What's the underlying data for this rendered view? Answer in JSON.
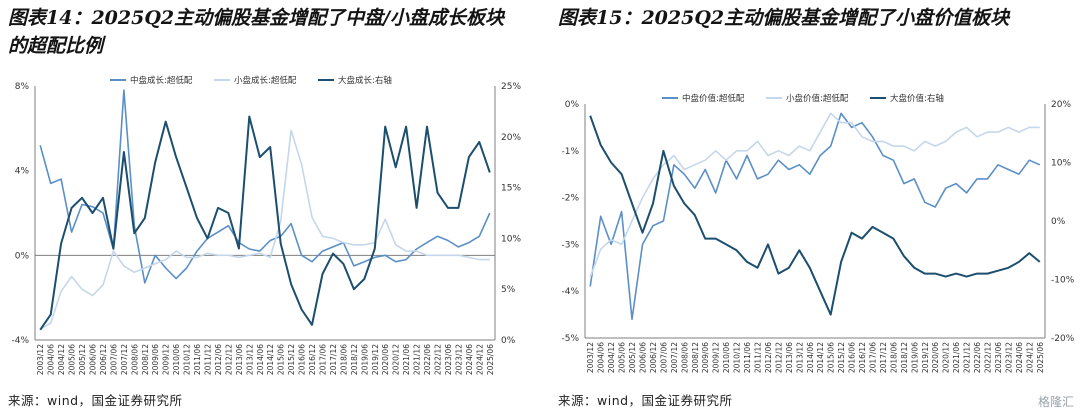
{
  "source_label": "来源：wind，国金证券研究所",
  "watermark": "格隆汇",
  "colors": {
    "mid": "#5b8fc7",
    "small": "#c5d7ea",
    "large": "#1c4e6e",
    "axis": "#7f7f7f",
    "text": "#333333"
  },
  "chart_data": [
    {
      "type": "line",
      "title": "图表14：2025Q2主动偏股基金增配了中盘/小盘成长板块的超配比例",
      "xlabel": "",
      "ylabel": "",
      "x": [
        "2003/12",
        "2004/06",
        "2004/12",
        "2005/06",
        "2005/12",
        "2006/06",
        "2006/12",
        "2007/06",
        "2007/12",
        "2008/06",
        "2008/12",
        "2009/06",
        "2009/12",
        "2010/06",
        "2010/12",
        "2011/06",
        "2011/12",
        "2012/06",
        "2012/12",
        "2013/06",
        "2013/12",
        "2014/06",
        "2014/12",
        "2015/06",
        "2015/12",
        "2016/06",
        "2016/12",
        "2017/06",
        "2017/12",
        "2018/06",
        "2018/12",
        "2019/06",
        "2019/12",
        "2020/06",
        "2020/12",
        "2021/06",
        "2021/12",
        "2022/06",
        "2022/12",
        "2023/06",
        "2023/12",
        "2024/06",
        "2024/12",
        "2025/06"
      ],
      "xtick_labels": [
        "2003/12",
        "2004/06",
        "2004/12",
        "2005/06",
        "2005/12",
        "2006/06",
        "2006/12",
        "2007/06",
        "2007/12",
        "2008/06",
        "2008/12",
        "2009/06",
        "2009/12",
        "2010/06",
        "2010/12",
        "2011/06",
        "2011/12",
        "2012/06",
        "2012/12",
        "2013/06",
        "2013/12",
        "2014/06",
        "2014/12",
        "2015/06",
        "2015/12",
        "2016/06",
        "2016/12",
        "2017/06",
        "2017/12",
        "2018/06",
        "2018/12",
        "2019/06",
        "2019/12",
        "2020/06",
        "2020/12",
        "2021/06",
        "2021/12",
        "2022/06",
        "2022/12",
        "2023/06",
        "2023/12",
        "2024/06",
        "2024/12",
        "2025/06"
      ],
      "ylim_left": [
        -4,
        8
      ],
      "yticks_left": [
        "-4%",
        "0%",
        "4%",
        "8%"
      ],
      "ylim_right": [
        0,
        25
      ],
      "yticks_right": [
        "0%",
        "5%",
        "10%",
        "15%",
        "20%",
        "25%"
      ],
      "legend_position": "top",
      "series": [
        {
          "name": "中盘成长:超低配",
          "axis": "left",
          "color": "mid",
          "values": [
            5.2,
            3.4,
            3.6,
            1.1,
            2.4,
            2.3,
            2.0,
            0.3,
            7.8,
            1.4,
            -1.3,
            0.0,
            -0.6,
            -1.1,
            -0.6,
            0.2,
            0.8,
            1.1,
            1.4,
            0.6,
            0.3,
            0.2,
            0.7,
            0.9,
            1.5,
            0.0,
            -0.3,
            0.2,
            0.4,
            0.6,
            -0.5,
            -0.3,
            -0.1,
            0.0,
            -0.3,
            -0.2,
            0.3,
            0.6,
            0.9,
            0.7,
            0.4,
            0.6,
            0.9,
            2.0
          ]
        },
        {
          "name": "小盘成长:超低配",
          "axis": "left",
          "color": "small",
          "values": [
            -3.5,
            -3.2,
            -1.7,
            -1.0,
            -1.6,
            -1.9,
            -1.4,
            0.2,
            -0.5,
            -0.8,
            -0.6,
            -0.4,
            -0.2,
            0.2,
            -0.1,
            -0.1,
            0.1,
            0.0,
            0.0,
            -0.1,
            0.0,
            0.1,
            -0.1,
            1.6,
            5.9,
            4.3,
            1.8,
            0.9,
            0.8,
            0.6,
            0.5,
            0.5,
            0.6,
            1.7,
            0.5,
            0.2,
            0.2,
            0.0,
            0.0,
            0.0,
            0.0,
            -0.1,
            -0.2,
            -0.2
          ]
        },
        {
          "name": "大盘成长:右轴",
          "axis": "right",
          "color": "large",
          "values": [
            1.0,
            2.5,
            9.5,
            13.0,
            14.0,
            12.5,
            14.0,
            9.0,
            18.5,
            10.5,
            12.0,
            17.5,
            21.5,
            18.0,
            15.0,
            12.0,
            10.0,
            13.0,
            12.5,
            9.0,
            22.0,
            18.0,
            19.0,
            9.5,
            5.5,
            3.0,
            1.5,
            6.5,
            8.5,
            7.5,
            5.0,
            6.0,
            9.0,
            21.0,
            17.0,
            21.0,
            13.0,
            21.0,
            14.5,
            13.0,
            13.0,
            18.0,
            19.5,
            16.5
          ]
        }
      ]
    },
    {
      "type": "line",
      "title": "图表15：2025Q2主动偏股基金增配了小盘价值板块",
      "xlabel": "",
      "ylabel": "",
      "x": [
        "2003/12",
        "2004/06",
        "2004/12",
        "2005/06",
        "2005/12",
        "2006/06",
        "2006/12",
        "2007/06",
        "2007/12",
        "2008/06",
        "2008/12",
        "2009/06",
        "2009/12",
        "2010/06",
        "2010/12",
        "2011/06",
        "2011/12",
        "2012/06",
        "2012/12",
        "2013/06",
        "2013/12",
        "2014/06",
        "2014/12",
        "2015/06",
        "2015/12",
        "2016/06",
        "2016/12",
        "2017/06",
        "2017/12",
        "2018/06",
        "2018/12",
        "2019/06",
        "2019/12",
        "2020/06",
        "2020/12",
        "2021/06",
        "2021/12",
        "2022/06",
        "2022/12",
        "2023/06",
        "2023/12",
        "2024/06",
        "2024/12",
        "2025/06"
      ],
      "xtick_labels": [
        "2003/12",
        "2004/06",
        "2004/12",
        "2005/06",
        "2005/12",
        "2006/06",
        "2006/12",
        "2007/06",
        "2007/12",
        "2008/06",
        "2008/12",
        "2009/06",
        "2009/12",
        "2010/06",
        "2010/12",
        "2011/06",
        "2011/12",
        "2012/06",
        "2012/12",
        "2013/06",
        "2013/12",
        "2014/06",
        "2014/12",
        "2015/06",
        "2015/12",
        "2016/06",
        "2016/12",
        "2017/06",
        "2017/12",
        "2018/06",
        "2018/12",
        "2019/06",
        "2019/12",
        "2020/06",
        "2020/12",
        "2021/06",
        "2021/12",
        "2022/06",
        "2022/12",
        "2023/06",
        "2023/12",
        "2024/06",
        "2024/12",
        "2025/06"
      ],
      "ylim_left": [
        -5,
        0
      ],
      "yticks_left": [
        "-5%",
        "-4%",
        "-3%",
        "-2%",
        "-1%",
        "0%"
      ],
      "ylim_right": [
        -20,
        20
      ],
      "yticks_right": [
        "-20%",
        "-10%",
        "0%",
        "10%",
        "20%"
      ],
      "legend_position": "top",
      "series": [
        {
          "name": "中盘价值:超低配",
          "axis": "left",
          "color": "mid",
          "values": [
            -3.9,
            -2.4,
            -3.0,
            -2.3,
            -4.6,
            -3.0,
            -2.6,
            -2.5,
            -1.3,
            -1.5,
            -1.8,
            -1.4,
            -1.9,
            -1.2,
            -1.6,
            -1.1,
            -1.6,
            -1.5,
            -1.2,
            -1.4,
            -1.3,
            -1.5,
            -1.1,
            -0.9,
            -0.2,
            -0.5,
            -0.4,
            -0.7,
            -1.1,
            -1.2,
            -1.7,
            -1.6,
            -2.1,
            -2.2,
            -1.8,
            -1.7,
            -1.9,
            -1.6,
            -1.6,
            -1.3,
            -1.4,
            -1.5,
            -1.2,
            -1.3
          ]
        },
        {
          "name": "小盘价值:超低配",
          "axis": "left",
          "color": "small",
          "values": [
            -3.7,
            -3.1,
            -2.9,
            -3.0,
            -2.5,
            -2.0,
            -1.6,
            -1.3,
            -1.1,
            -1.4,
            -1.3,
            -1.2,
            -1.0,
            -1.2,
            -1.0,
            -1.0,
            -0.8,
            -1.1,
            -1.0,
            -1.1,
            -0.9,
            -1.0,
            -0.6,
            -0.2,
            -0.4,
            -0.4,
            -0.7,
            -0.8,
            -0.8,
            -0.9,
            -0.9,
            -1.0,
            -0.8,
            -0.9,
            -0.8,
            -0.6,
            -0.5,
            -0.7,
            -0.6,
            -0.6,
            -0.5,
            -0.6,
            -0.5,
            -0.5
          ]
        },
        {
          "name": "大盘价值:右轴",
          "axis": "right",
          "color": "large",
          "values": [
            18.0,
            13.0,
            10.0,
            8.0,
            3.0,
            -2.0,
            3.0,
            12.0,
            6.0,
            3.0,
            1.0,
            -3.0,
            -3.0,
            -4.0,
            -5.0,
            -7.0,
            -8.0,
            -4.0,
            -9.0,
            -8.0,
            -5.0,
            -8.0,
            -12.0,
            -16.0,
            -7.0,
            -2.0,
            -3.0,
            -1.0,
            -2.0,
            -3.0,
            -6.0,
            -8.0,
            -9.0,
            -9.0,
            -9.5,
            -9.0,
            -9.5,
            -9.0,
            -9.0,
            -8.5,
            -8.0,
            -7.0,
            -5.5,
            -7.0
          ]
        }
      ]
    }
  ]
}
